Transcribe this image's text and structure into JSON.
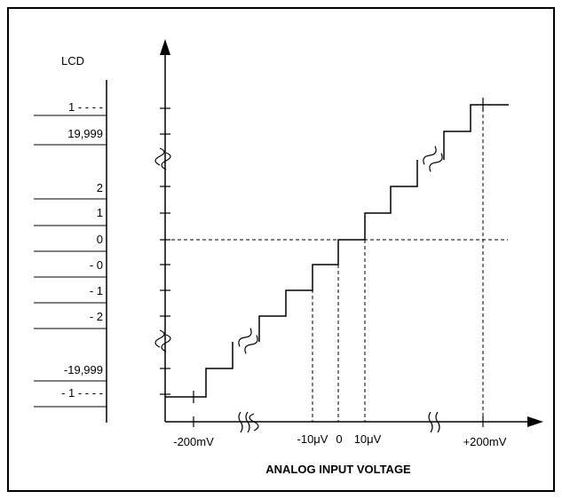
{
  "lcd": {
    "header": "LCD",
    "readings": [
      "1 - - - -",
      "19,999",
      "2",
      "1",
      "0",
      "- 0",
      "- 1",
      "- 2",
      "-19,999",
      "- 1 - - - -"
    ]
  },
  "x_axis": {
    "title": "ANALOG INPUT VOLTAGE",
    "tick_labels": [
      "-200mV",
      "-10μV",
      "0",
      "10μV",
      "+200mV"
    ]
  },
  "transfer_curve": {
    "description_points": "staircase from -200mV to +200mV",
    "zero_crossing_lcd": "0"
  }
}
